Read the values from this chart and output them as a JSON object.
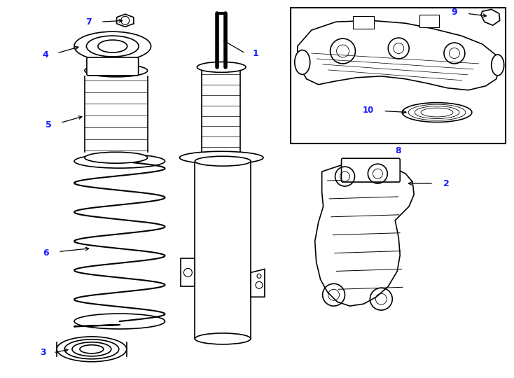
{
  "bg_color": "#ffffff",
  "line_color": "#000000",
  "label_color": "#000000",
  "number_color": "#1a1aff",
  "fig_width": 7.34,
  "fig_height": 5.4,
  "dpi": 100
}
